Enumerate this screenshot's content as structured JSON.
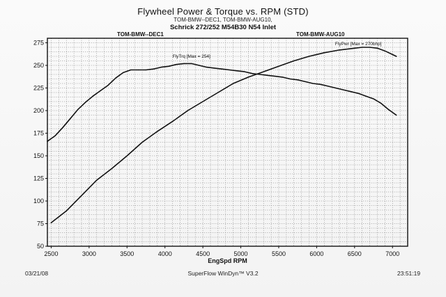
{
  "header": {
    "title": "Flywheel Power & Torque vs. RPM (STD)",
    "subtitle": "TOM-BMW--DEC1, TOM-BMW-AUG10,",
    "config": "Schrick 272/252 M54B30 N54 Inlet",
    "run_left": "TOM-BMW--DEC1",
    "run_right": "TOM-BMW-AUG10"
  },
  "footer": {
    "date": "03/21/08",
    "software": "SuperFlow WinDyn™ V3.2",
    "time": "23:51:19"
  },
  "chart_data": {
    "type": "line",
    "title": "Flywheel Power & Torque vs. RPM (STD)",
    "xlabel": "EngSpd RPM",
    "ylabel": "",
    "xlim": [
      2450,
      7200
    ],
    "ylim": [
      50,
      280
    ],
    "x_ticks": [
      2500,
      3000,
      3500,
      4000,
      4500,
      5000,
      5500,
      6000,
      6500,
      7000
    ],
    "y_ticks": [
      50,
      75,
      100,
      125,
      150,
      175,
      200,
      225,
      250,
      275
    ],
    "grid": true,
    "series": [
      {
        "name": "FlyTrq",
        "annotation": "FlyTrq [Max = 254]",
        "annotation_at": [
          4350,
          256
        ],
        "x": [
          2450,
          2550,
          2650,
          2750,
          2850,
          2950,
          3050,
          3150,
          3250,
          3350,
          3450,
          3550,
          3650,
          3750,
          3850,
          3950,
          4050,
          4150,
          4250,
          4350,
          4450,
          4550,
          4650,
          4750,
          4850,
          4950,
          5050,
          5150,
          5250,
          5350,
          5450,
          5550,
          5650,
          5750,
          5850,
          5950,
          6050,
          6150,
          6250,
          6350,
          6450,
          6550,
          6650,
          6750,
          6850,
          6950,
          7050
        ],
        "values": [
          166,
          172,
          181,
          191,
          201,
          209,
          216,
          222,
          228,
          236,
          242,
          245,
          245,
          245,
          246,
          248,
          249,
          251,
          252,
          252,
          250,
          248,
          247,
          246,
          245,
          244,
          243,
          241,
          240,
          239,
          238,
          237,
          235,
          234,
          232,
          230,
          229,
          227,
          225,
          223,
          221,
          219,
          216,
          213,
          208,
          201,
          195
        ]
      },
      {
        "name": "FlyPwr",
        "annotation": "FlyPwr [Max = 270bhp]",
        "annotation_at": [
          6550,
          270
        ],
        "x": [
          2500,
          2700,
          2900,
          3100,
          3300,
          3500,
          3700,
          3900,
          4100,
          4300,
          4500,
          4700,
          4900,
          5100,
          5300,
          5500,
          5700,
          5900,
          6100,
          6300,
          6500,
          6600,
          6700,
          6800,
          6900,
          7000,
          7050
        ],
        "values": [
          76,
          89,
          106,
          123,
          136,
          150,
          165,
          177,
          188,
          200,
          210,
          220,
          230,
          237,
          243,
          249,
          255,
          260,
          264,
          267,
          269,
          270,
          270,
          269,
          266,
          262,
          260
        ]
      }
    ]
  }
}
